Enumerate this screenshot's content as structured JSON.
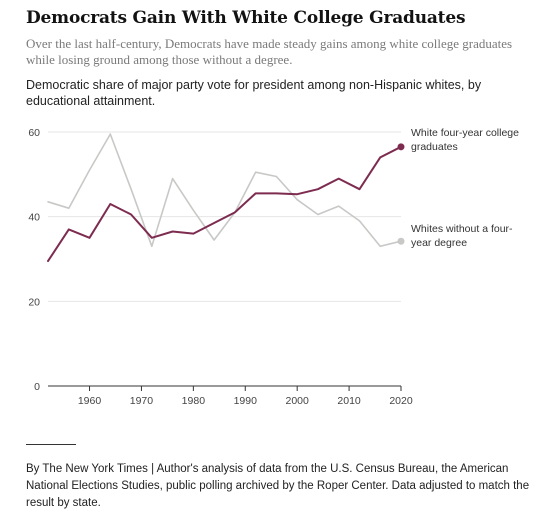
{
  "header": {
    "title": "Democrats Gain With White College Graduates",
    "subtitle": "Over the last half-century, Democrats have made steady gains among white college graduates while losing ground among those without a degree.",
    "description": "Democratic share of major party vote for president among non-Hispanic whites, by educational attainment."
  },
  "footer": {
    "source": "By The New York Times | Author's analysis of data from the U.S. Census Bureau, the American National Elections Studies, public polling archived by the Roper Center. Data adjusted to match the result by state."
  },
  "chart_data": {
    "type": "line",
    "title": "",
    "xlabel": "",
    "ylabel": "",
    "xlim": [
      1952,
      2020
    ],
    "ylim": [
      0,
      60
    ],
    "x_ticks": [
      "1960",
      "1970",
      "1980",
      "1990",
      "2000",
      "2010",
      "2020"
    ],
    "y_ticks": [
      "60",
      "40",
      "20",
      "0"
    ],
    "grid": "horizontal",
    "x": [
      1952,
      1956,
      1960,
      1964,
      1968,
      1972,
      1976,
      1980,
      1984,
      1988,
      1992,
      1996,
      2000,
      2004,
      2008,
      2012,
      2016,
      2020
    ],
    "series": [
      {
        "name": "White four-year college graduates",
        "color": "#7d2c50",
        "values": [
          29.5,
          37,
          35,
          43,
          40.5,
          35,
          36.5,
          36,
          38.5,
          41,
          45.5,
          45.5,
          45.3,
          46.5,
          49,
          46.5,
          54,
          56.5
        ],
        "label_lines": [
          "White four-year college",
          "graduates"
        ],
        "end_marker": true
      },
      {
        "name": "Whites without a four-year degree",
        "color": "#c8c8c6",
        "values": [
          43.5,
          42,
          51,
          59.5,
          46.5,
          33,
          49,
          41.5,
          34.5,
          41,
          50.5,
          49.5,
          44,
          40.5,
          42.5,
          39,
          33,
          34.2
        ],
        "label_lines": [
          "Whites without a four-",
          "year degree"
        ],
        "end_marker": true
      }
    ],
    "colors": {
      "grid": "#e6e6e6",
      "axis": "#333333"
    }
  }
}
